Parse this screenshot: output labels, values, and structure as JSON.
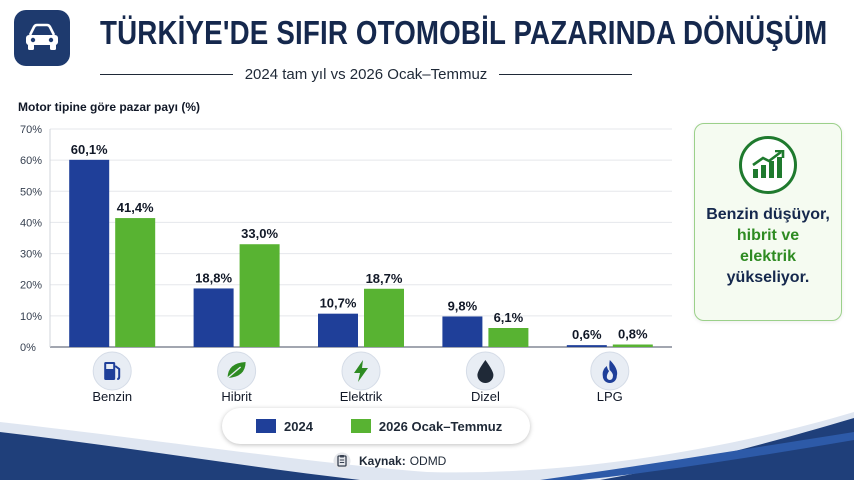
{
  "header": {
    "title": "TÜRKİYE'DE SIFIR OTOMOBİL PAZARINDA DÖNÜŞÜM",
    "subtitle": "2024 tam yıl vs 2026 Ocak–Temmuz"
  },
  "callout": {
    "line1": "Benzin düşüyor,",
    "line2": "hibrit ve",
    "line3": "elektrik",
    "line4": "yükseliyor."
  },
  "source": {
    "label": "Kaynak:",
    "value": "ODMD"
  },
  "colors": {
    "series_2024": "#1f3f99",
    "series_2026": "#58b332",
    "title": "#15284d"
  },
  "chart_data": {
    "type": "bar",
    "title": "",
    "ylabel": "Motor tipine göre pazar payı (%)",
    "xlabel": "",
    "ylim": [
      0,
      70
    ],
    "yticks": [
      0,
      10,
      20,
      30,
      40,
      50,
      60,
      70
    ],
    "ytick_labels": [
      "0%",
      "10%",
      "20%",
      "30%",
      "40%",
      "50%",
      "60%",
      "70%"
    ],
    "grid": true,
    "legend_position": "bottom",
    "categories": [
      "Benzin",
      "Hibrit",
      "Elektrik",
      "Dizel",
      "LPG"
    ],
    "category_icons": [
      "fuel-pump-icon",
      "leaf-icon",
      "lightning-icon",
      "oil-drop-icon",
      "flame-icon"
    ],
    "series": [
      {
        "name": "2024",
        "values": [
          60.1,
          18.8,
          10.7,
          9.8,
          0.6
        ],
        "labels": [
          "60,1%",
          "18,8%",
          "10,7%",
          "9,8%",
          "0,6%"
        ]
      },
      {
        "name": "2026 Ocak–Temmuz",
        "values": [
          41.4,
          33.0,
          18.7,
          6.1,
          0.8
        ],
        "labels": [
          "41,4%",
          "33,0%",
          "18,7%",
          "6,1%",
          "0,8%"
        ]
      }
    ]
  }
}
